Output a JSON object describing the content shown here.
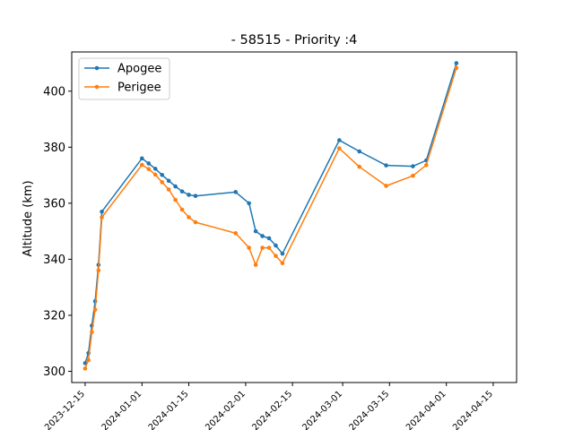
{
  "chart_data": {
    "type": "line",
    "title": "- 58515 - Priority :4",
    "xlabel": "",
    "ylabel": "Altitude (km)",
    "x_type": "date",
    "xlim": [
      "2023-12-11",
      "2024-04-22"
    ],
    "ylim": [
      296,
      414
    ],
    "yticks": [
      300,
      320,
      340,
      360,
      380,
      400
    ],
    "xticks": [
      "2023-12-15",
      "2024-01-01",
      "2024-01-15",
      "2024-02-01",
      "2024-02-15",
      "2024-03-01",
      "2024-03-15",
      "2024-04-01",
      "2024-04-15"
    ],
    "legend_position": "top-left",
    "grid": false,
    "series": [
      {
        "name": "Apogee",
        "color": "#1f77b4",
        "points": [
          [
            "2023-12-15",
            302.9
          ],
          [
            "2023-12-16",
            306.5
          ],
          [
            "2023-12-17",
            316.3
          ],
          [
            "2023-12-18",
            325.0
          ],
          [
            "2023-12-19",
            338.0
          ],
          [
            "2023-12-20",
            357.0
          ],
          [
            "2024-01-01",
            376.0
          ],
          [
            "2024-01-03",
            374.2
          ],
          [
            "2024-01-05",
            372.3
          ],
          [
            "2024-01-07",
            370.1
          ],
          [
            "2024-01-09",
            368.0
          ],
          [
            "2024-01-11",
            366.0
          ],
          [
            "2024-01-13",
            364.2
          ],
          [
            "2024-01-15",
            363.0
          ],
          [
            "2024-01-17",
            362.6
          ],
          [
            "2024-01-29",
            364.0
          ],
          [
            "2024-02-02",
            360.0
          ],
          [
            "2024-02-04",
            350.0
          ],
          [
            "2024-02-06",
            348.3
          ],
          [
            "2024-02-08",
            347.5
          ],
          [
            "2024-02-10",
            344.9
          ],
          [
            "2024-02-12",
            342.0
          ],
          [
            "2024-02-29",
            382.5
          ],
          [
            "2024-03-06",
            378.5
          ],
          [
            "2024-03-14",
            373.5
          ],
          [
            "2024-03-22",
            373.2
          ],
          [
            "2024-03-26",
            375.3
          ],
          [
            "2024-04-04",
            410.0
          ]
        ]
      },
      {
        "name": "Perigee",
        "color": "#ff7f0e",
        "points": [
          [
            "2023-12-15",
            301.0
          ],
          [
            "2023-12-16",
            304.0
          ],
          [
            "2023-12-17",
            314.0
          ],
          [
            "2023-12-18",
            322.0
          ],
          [
            "2023-12-19",
            336.0
          ],
          [
            "2023-12-20",
            355.0
          ],
          [
            "2024-01-01",
            373.7
          ],
          [
            "2024-01-03",
            372.2
          ],
          [
            "2024-01-05",
            370.2
          ],
          [
            "2024-01-07",
            367.5
          ],
          [
            "2024-01-09",
            364.9
          ],
          [
            "2024-01-11",
            361.2
          ],
          [
            "2024-01-13",
            357.7
          ],
          [
            "2024-01-15",
            355.0
          ],
          [
            "2024-01-17",
            353.2
          ],
          [
            "2024-01-29",
            349.3
          ],
          [
            "2024-02-02",
            344.1
          ],
          [
            "2024-02-04",
            338.0
          ],
          [
            "2024-02-06",
            344.1
          ],
          [
            "2024-02-08",
            344.1
          ],
          [
            "2024-02-10",
            341.2
          ],
          [
            "2024-02-12",
            338.6
          ],
          [
            "2024-02-29",
            379.6
          ],
          [
            "2024-03-06",
            373.0
          ],
          [
            "2024-03-14",
            366.2
          ],
          [
            "2024-03-22",
            369.8
          ],
          [
            "2024-03-26",
            373.6
          ],
          [
            "2024-04-04",
            408.3
          ]
        ]
      }
    ]
  }
}
